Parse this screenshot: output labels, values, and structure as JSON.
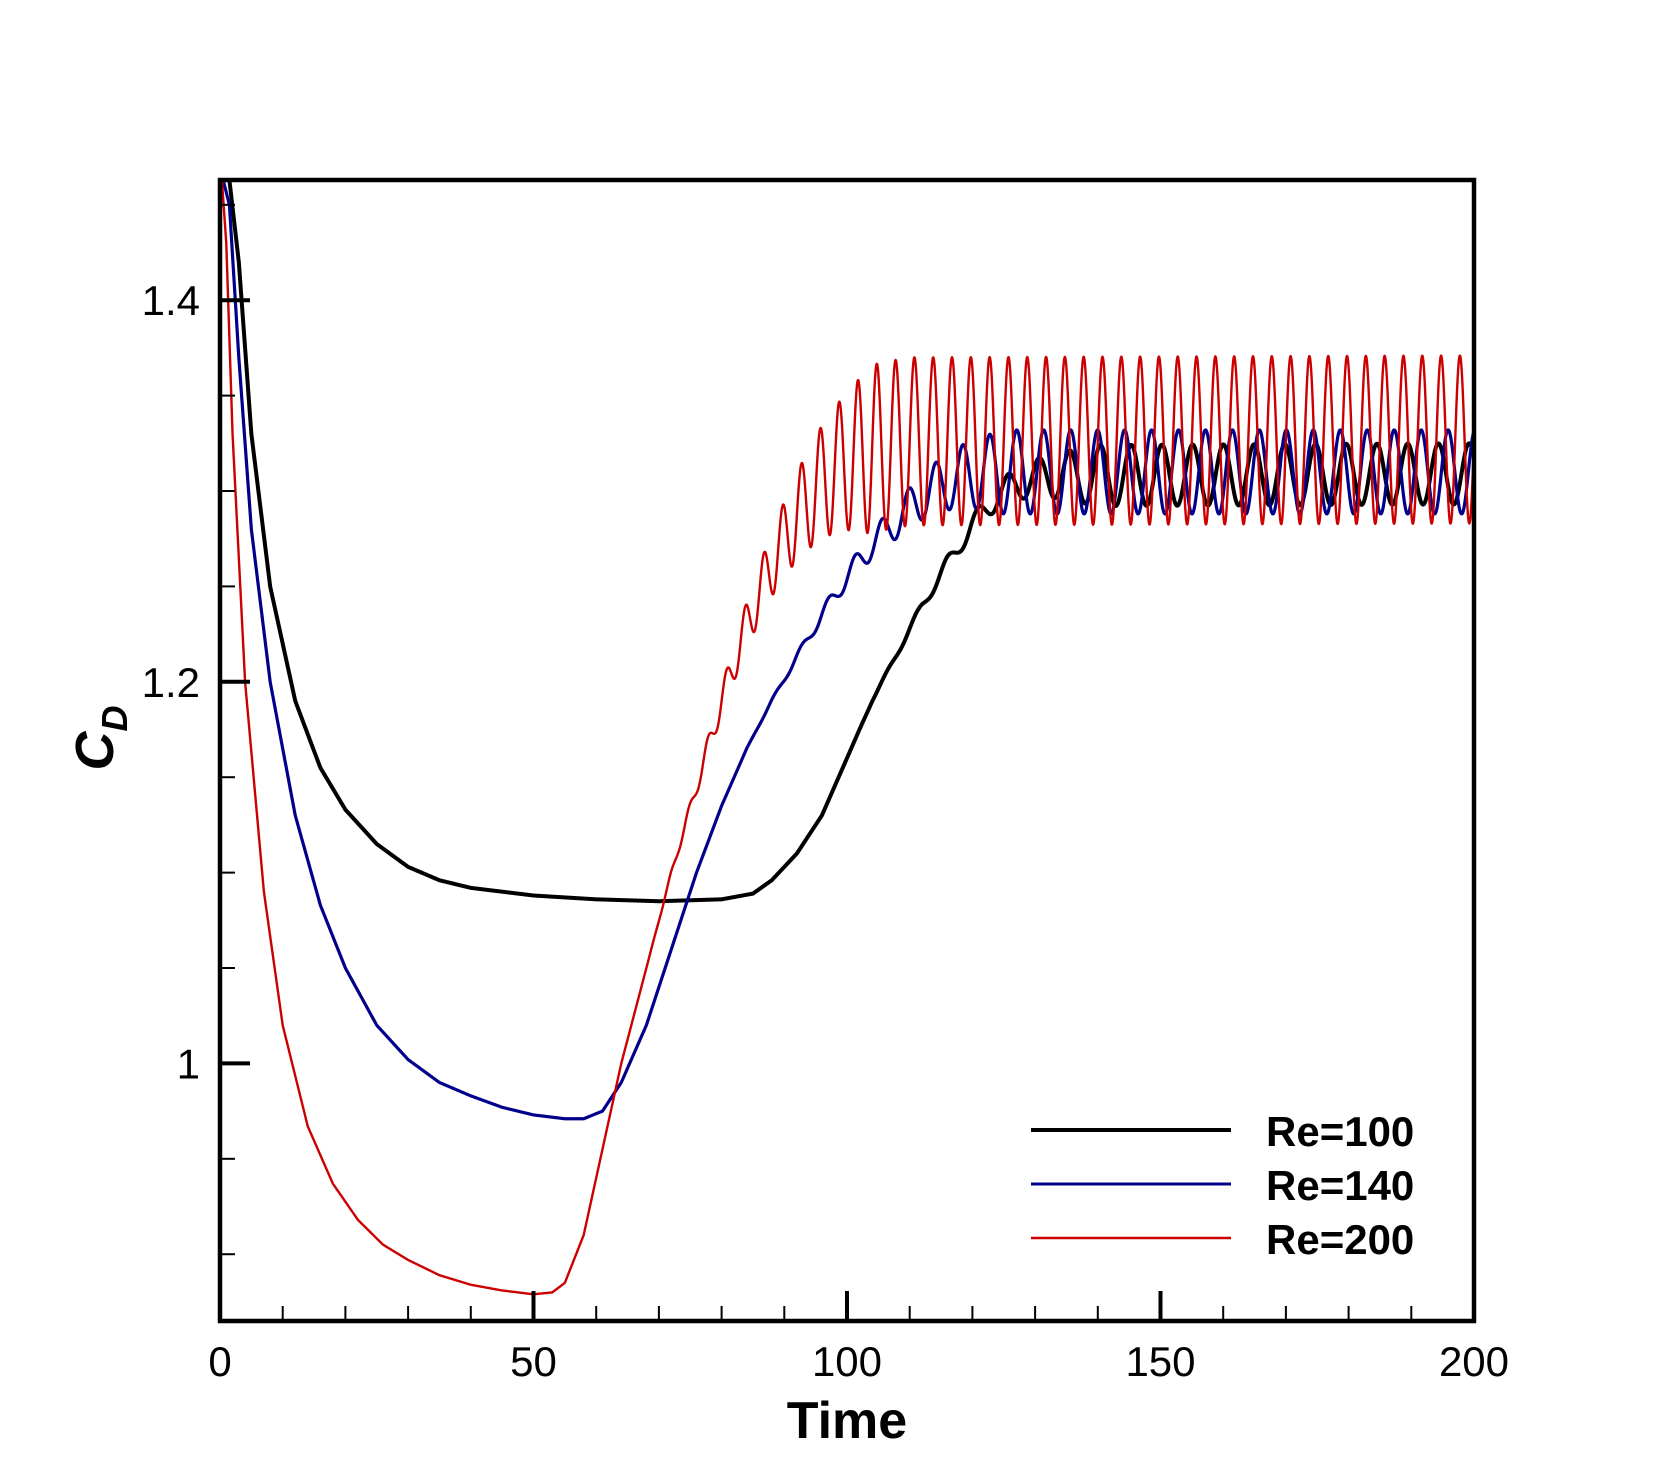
{
  "chart_data": {
    "type": "line",
    "title": "",
    "xlabel": "Time",
    "ylabel_main": "C",
    "ylabel_sub": "D",
    "xlim": [
      0,
      200
    ],
    "ylim": [
      0.865,
      1.463
    ],
    "xticks_major": [
      0,
      50,
      100,
      150,
      200
    ],
    "xtick_labels": [
      "0",
      "50",
      "100",
      "150",
      "200"
    ],
    "xticks_minor_step": 10,
    "yticks_major": [
      1.0,
      1.2,
      1.4
    ],
    "ytick_labels": [
      "1",
      "1.2",
      "1.4"
    ],
    "yticks_minor_step": 0.05,
    "grid": false,
    "legend_position": "bottom-right",
    "series": [
      {
        "name": "Re=100",
        "color": "#000000",
        "baseline": [
          [
            1.5,
            1.463
          ],
          [
            3,
            1.42
          ],
          [
            5,
            1.33
          ],
          [
            8,
            1.25
          ],
          [
            12,
            1.19
          ],
          [
            16,
            1.155
          ],
          [
            20,
            1.133
          ],
          [
            25,
            1.115
          ],
          [
            30,
            1.103
          ],
          [
            35,
            1.096
          ],
          [
            40,
            1.092
          ],
          [
            50,
            1.088
          ],
          [
            60,
            1.086
          ],
          [
            70,
            1.085
          ],
          [
            80,
            1.086
          ],
          [
            85,
            1.089
          ],
          [
            88,
            1.096
          ],
          [
            92,
            1.11
          ],
          [
            96,
            1.13
          ],
          [
            100,
            1.16
          ],
          [
            104,
            1.19
          ],
          [
            108,
            1.215
          ],
          [
            112,
            1.24
          ],
          [
            116,
            1.262
          ],
          [
            120,
            1.282
          ],
          [
            124,
            1.298
          ],
          [
            128,
            1.305
          ],
          [
            132,
            1.308
          ],
          [
            200,
            1.309
          ]
        ],
        "oscillation": {
          "start": 100,
          "full": 140,
          "amplitude": 0.016,
          "period": 4.9
        }
      },
      {
        "name": "Re=140",
        "color": "#00008b",
        "baseline": [
          [
            0.5,
            1.463
          ],
          [
            1.5,
            1.45
          ],
          [
            3,
            1.37
          ],
          [
            5,
            1.28
          ],
          [
            8,
            1.2
          ],
          [
            12,
            1.13
          ],
          [
            16,
            1.083
          ],
          [
            20,
            1.05
          ],
          [
            25,
            1.02
          ],
          [
            30,
            1.002
          ],
          [
            35,
            0.99
          ],
          [
            40,
            0.983
          ],
          [
            45,
            0.977
          ],
          [
            50,
            0.973
          ],
          [
            55,
            0.971
          ],
          [
            58,
            0.971
          ],
          [
            61,
            0.975
          ],
          [
            64,
            0.99
          ],
          [
            68,
            1.02
          ],
          [
            72,
            1.06
          ],
          [
            76,
            1.1
          ],
          [
            80,
            1.135
          ],
          [
            84,
            1.165
          ],
          [
            88,
            1.19
          ],
          [
            92,
            1.213
          ],
          [
            96,
            1.235
          ],
          [
            100,
            1.255
          ],
          [
            104,
            1.272
          ],
          [
            108,
            1.285
          ],
          [
            112,
            1.297
          ],
          [
            116,
            1.305
          ],
          [
            120,
            1.309
          ],
          [
            125,
            1.31
          ],
          [
            200,
            1.31
          ]
        ],
        "oscillation": {
          "start": 83,
          "full": 125,
          "amplitude": 0.022,
          "period": 4.3
        }
      },
      {
        "name": "Re=200",
        "color": "#cc0000",
        "baseline": [
          [
            0.3,
            1.463
          ],
          [
            1,
            1.43
          ],
          [
            2,
            1.33
          ],
          [
            4,
            1.2
          ],
          [
            7,
            1.09
          ],
          [
            10,
            1.02
          ],
          [
            14,
            0.967
          ],
          [
            18,
            0.937
          ],
          [
            22,
            0.918
          ],
          [
            26,
            0.905
          ],
          [
            30,
            0.897
          ],
          [
            35,
            0.889
          ],
          [
            40,
            0.884
          ],
          [
            45,
            0.881
          ],
          [
            50,
            0.879
          ],
          [
            53,
            0.88
          ],
          [
            55,
            0.885
          ],
          [
            58,
            0.91
          ],
          [
            61,
            0.955
          ],
          [
            64,
            1.0
          ],
          [
            68,
            1.05
          ],
          [
            72,
            1.1
          ],
          [
            76,
            1.145
          ],
          [
            80,
            1.19
          ],
          [
            84,
            1.23
          ],
          [
            88,
            1.262
          ],
          [
            92,
            1.287
          ],
          [
            96,
            1.305
          ],
          [
            100,
            1.316
          ],
          [
            105,
            1.323
          ],
          [
            110,
            1.326
          ],
          [
            200,
            1.327
          ]
        ],
        "oscillation": {
          "start": 68,
          "full": 104,
          "amplitude": 0.044,
          "period": 3.0
        }
      }
    ]
  }
}
